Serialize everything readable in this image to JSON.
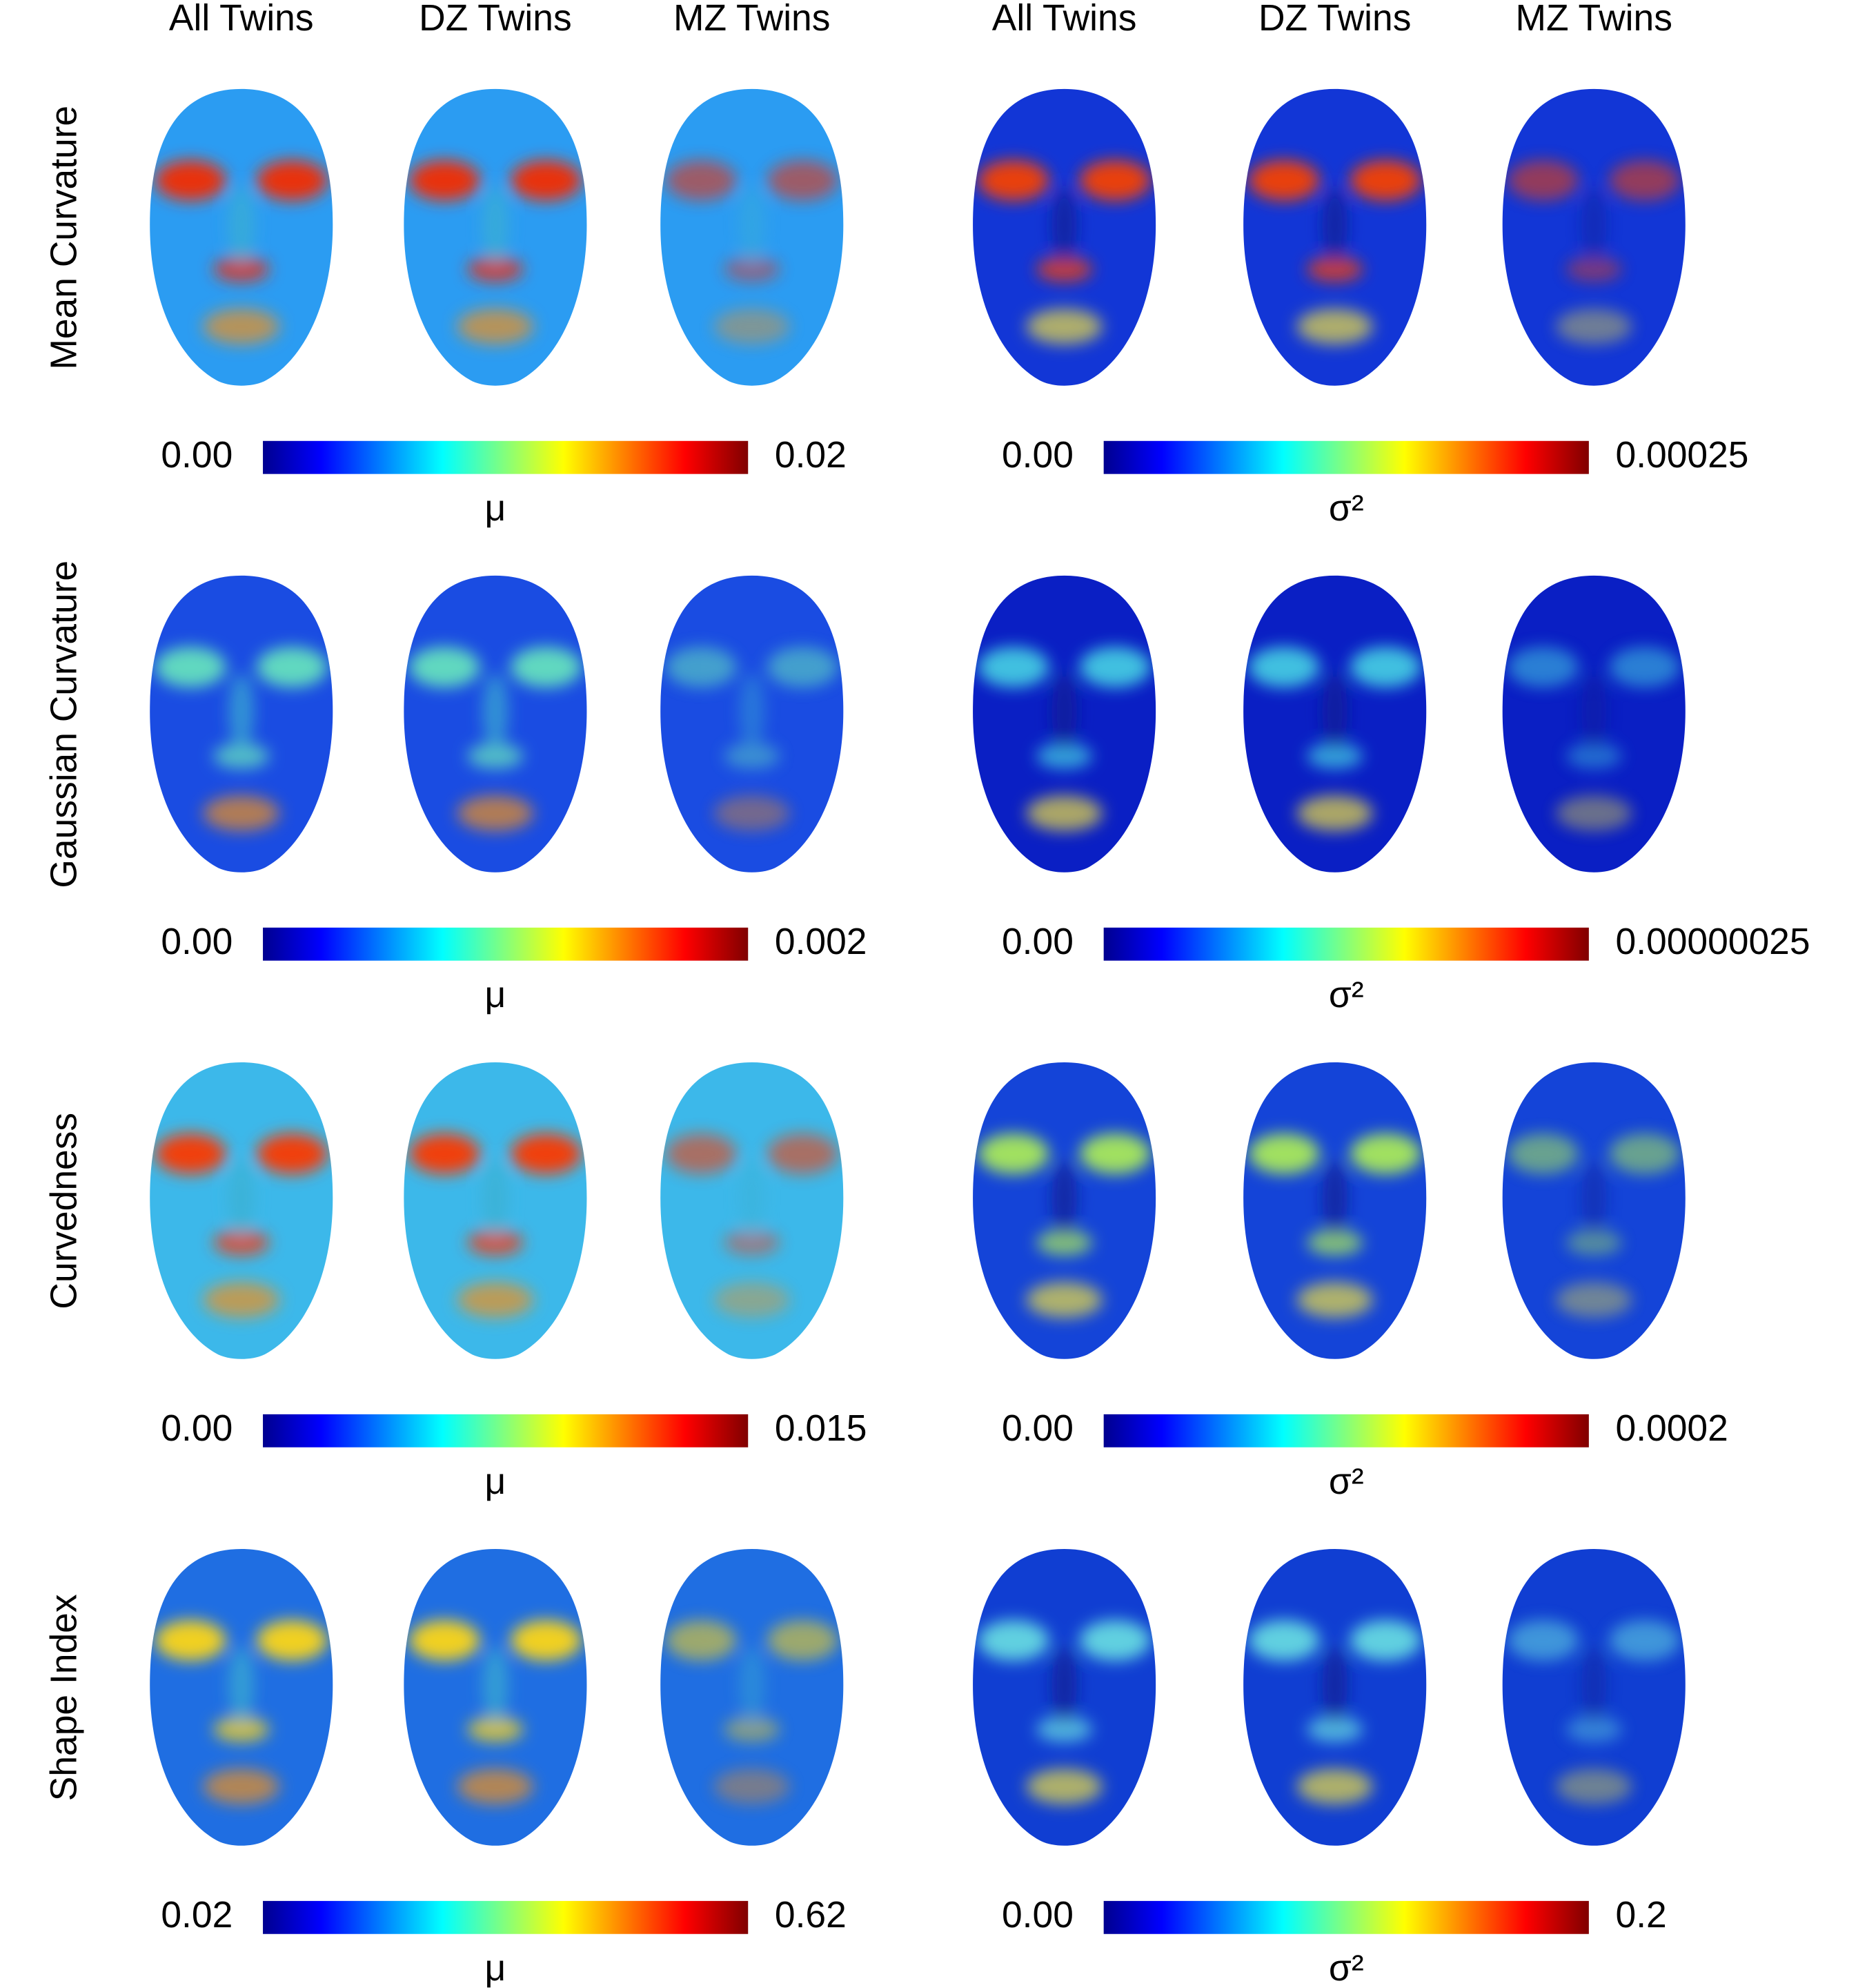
{
  "column_headers": [
    "All Twins",
    "DZ Twins",
    "MZ Twins",
    "All Twins",
    "DZ Twins",
    "MZ Twins"
  ],
  "rows": [
    {
      "label": "Mean Curvature",
      "mean_colorbar": {
        "min": "0.00",
        "max": "0.02",
        "symbol": "μ"
      },
      "variance_colorbar": {
        "min": "0.00",
        "max": "0.00025",
        "symbol": "σ²"
      }
    },
    {
      "label": "Gaussian Curvature",
      "mean_colorbar": {
        "min": "0.00",
        "max": "0.002",
        "symbol": "μ"
      },
      "variance_colorbar": {
        "min": "0.00",
        "max": "0.00000025",
        "symbol": "σ²"
      }
    },
    {
      "label": "Curvedness",
      "mean_colorbar": {
        "min": "0.00",
        "max": "0.015",
        "symbol": "μ"
      },
      "variance_colorbar": {
        "min": "0.00",
        "max": "0.0002",
        "symbol": "σ²"
      }
    },
    {
      "label": "Shape Index",
      "mean_colorbar": {
        "min": "0.02",
        "max": "0.62",
        "symbol": "μ"
      },
      "variance_colorbar": {
        "min": "0.00",
        "max": "0.2",
        "symbol": "σ²"
      }
    }
  ]
}
